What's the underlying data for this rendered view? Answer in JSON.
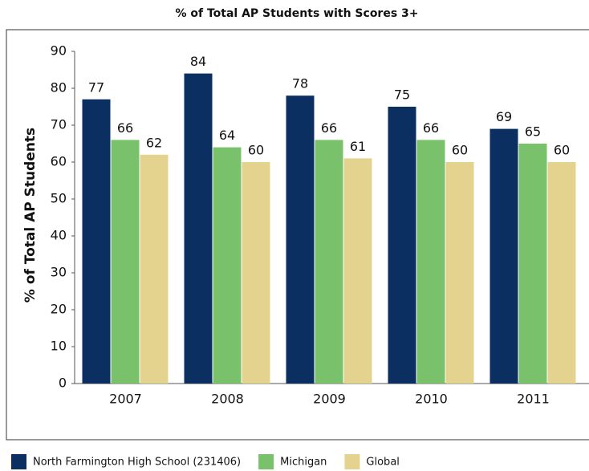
{
  "chart_data": {
    "type": "bar",
    "title": "% of Total AP Students with Scores 3+",
    "y_label": "% of Total AP Students",
    "categories": [
      "2007",
      "2008",
      "2009",
      "2010",
      "2011"
    ],
    "series": [
      {
        "name": "North Farmington High School (231406)",
        "color": "#0b2f60",
        "values": [
          77,
          84,
          78,
          75,
          69
        ]
      },
      {
        "name": "Michigan",
        "color": "#79c16a",
        "values": [
          66,
          64,
          66,
          66,
          65
        ]
      },
      {
        "name": "Global",
        "color": "#e4d38f",
        "values": [
          62,
          60,
          61,
          60,
          60
        ]
      }
    ],
    "ylim": [
      0,
      90
    ],
    "yticks": [
      0,
      10,
      20,
      30,
      40,
      50,
      60,
      70,
      80,
      90
    ],
    "legend": "bottom"
  }
}
